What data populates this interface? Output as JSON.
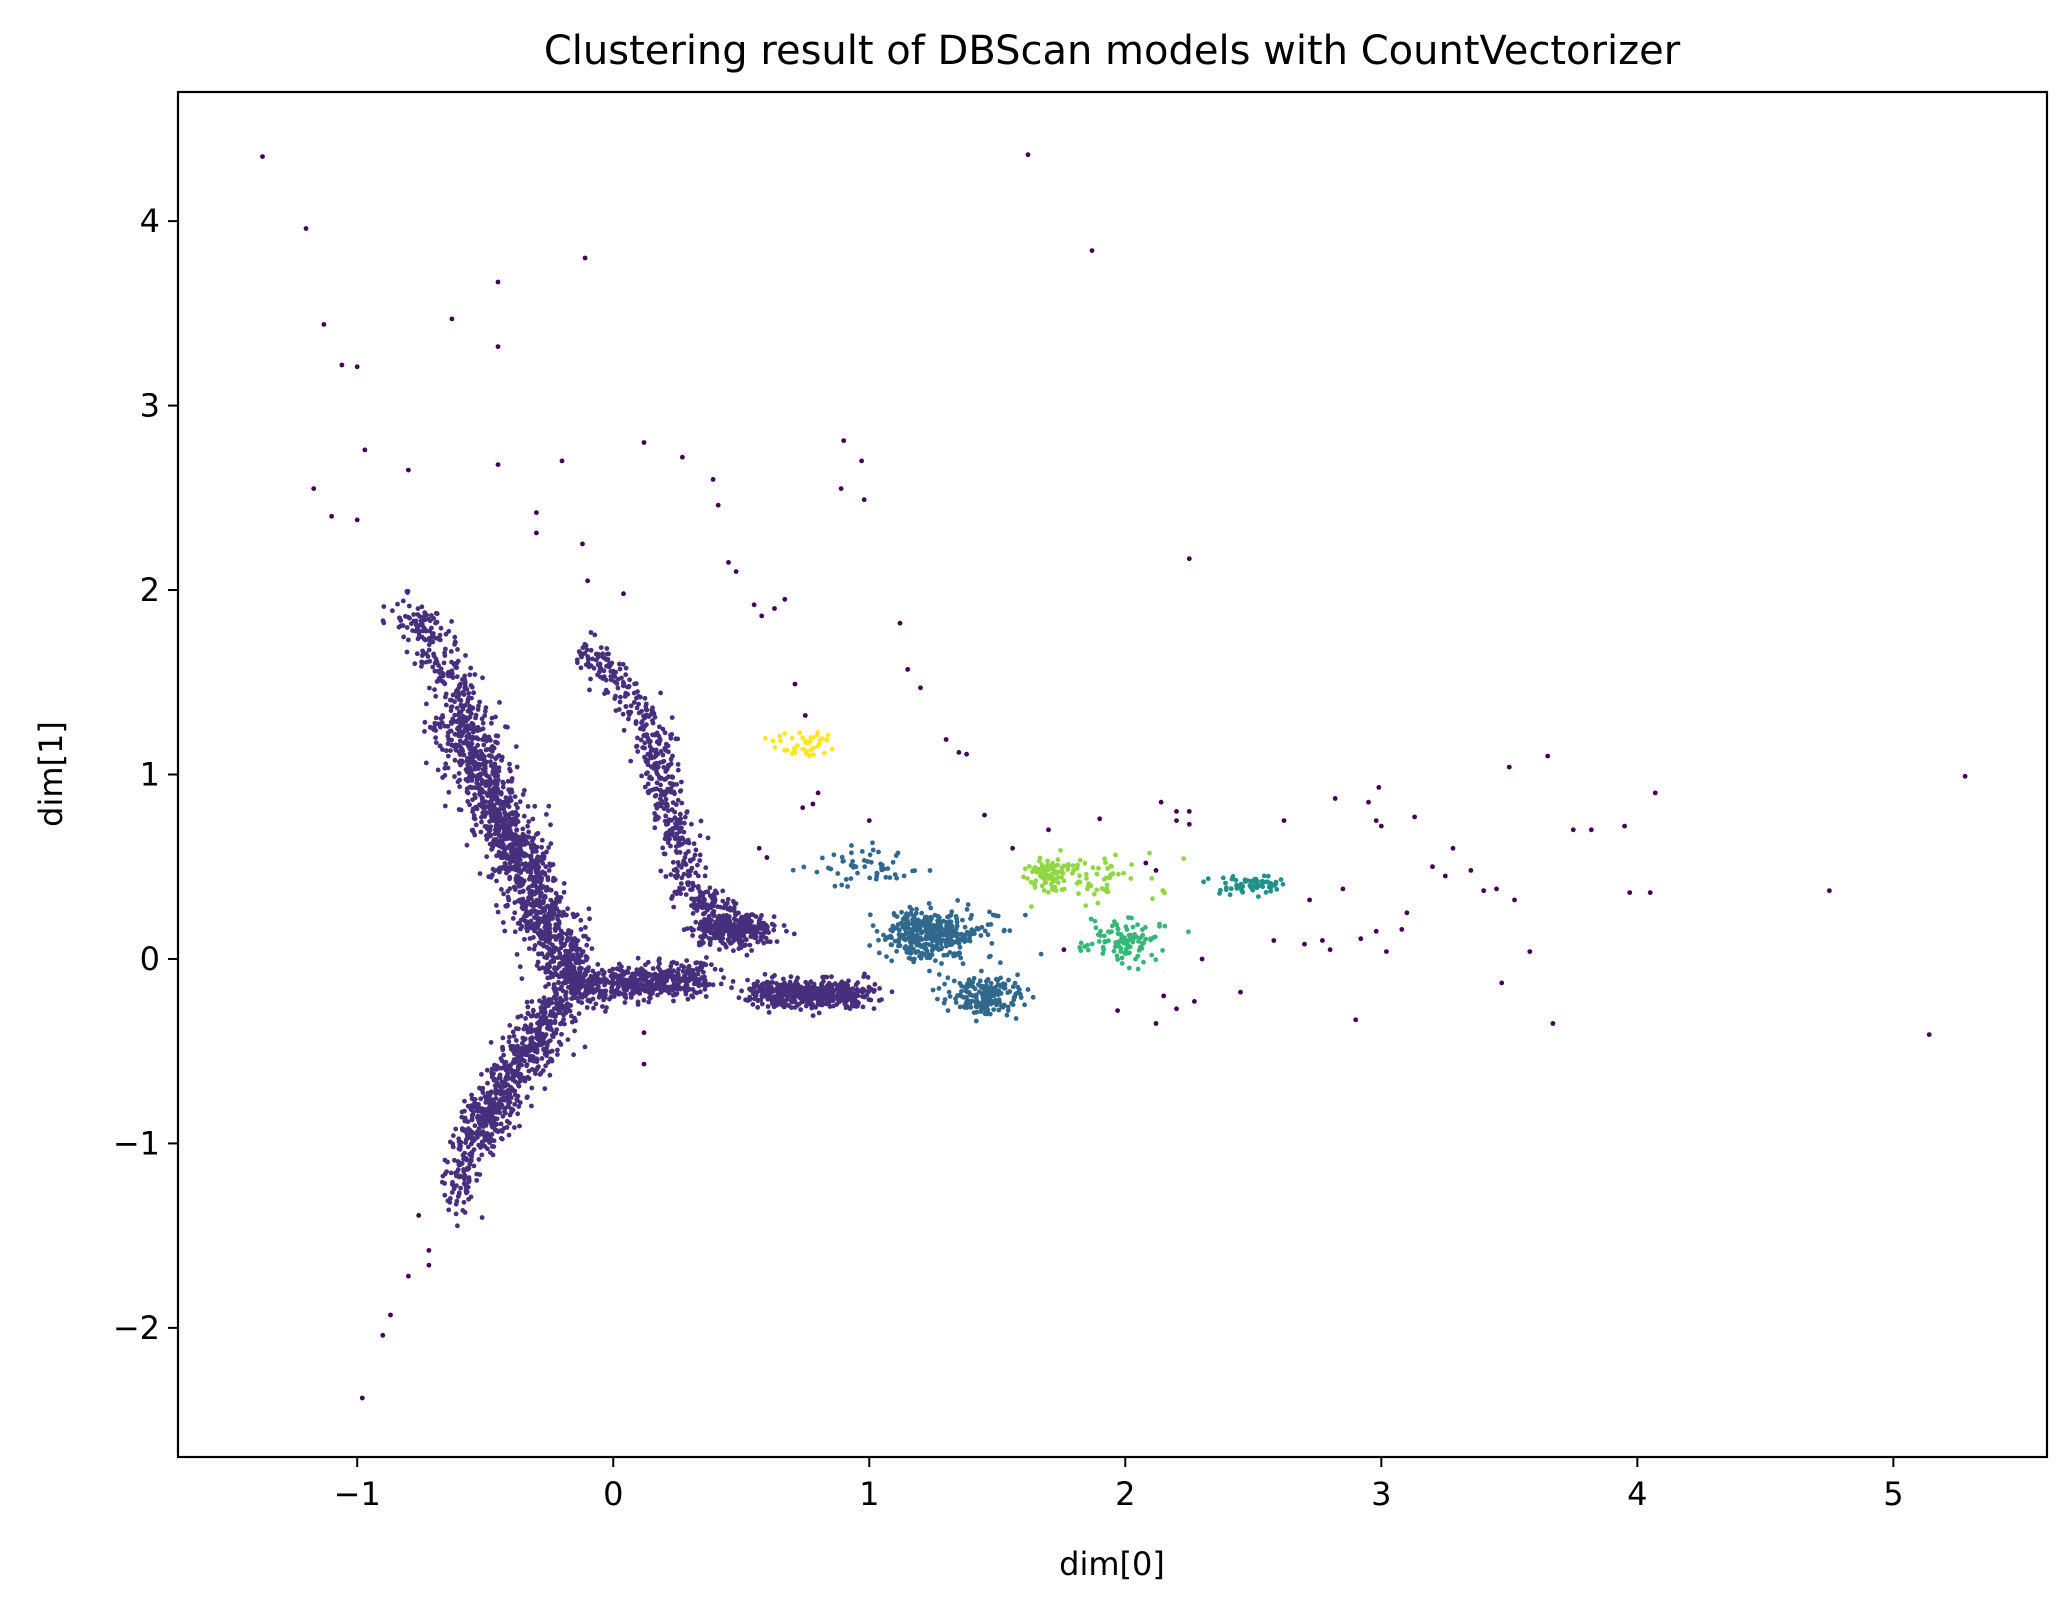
{
  "chart_data": {
    "type": "scatter",
    "title": "Clustering result of DBScan models with CountVectorizer",
    "xlabel": "dim[0]",
    "ylabel": "dim[1]",
    "xlim": [
      -1.7,
      5.6
    ],
    "ylim": [
      -2.7,
      4.7
    ],
    "x_ticks": [
      -1,
      0,
      1,
      2,
      3,
      4,
      5
    ],
    "x_tick_labels": [
      "−1",
      "0",
      "1",
      "2",
      "3",
      "4",
      "5"
    ],
    "y_ticks": [
      -2,
      -1,
      0,
      1,
      2,
      3,
      4
    ],
    "y_tick_labels": [
      "−2",
      "−1",
      "0",
      "1",
      "2",
      "3",
      "4"
    ],
    "grid": false,
    "legend": "none",
    "colormap": "viridis",
    "cluster_colors": {
      "noise": "#440154",
      "0": "#472f7d",
      "1": "#31688e",
      "2": "#21918c",
      "3": "#35b779",
      "4": "#90d743",
      "5": "#fde725"
    },
    "clusters": [
      {
        "label": "noise",
        "color": "#440154",
        "points": [
          [
            -1.37,
            4.35
          ],
          [
            -1.2,
            3.96
          ],
          [
            -1.13,
            3.44
          ],
          [
            -1.06,
            3.22
          ],
          [
            -1.0,
            3.21
          ],
          [
            -0.63,
            3.47
          ],
          [
            -0.45,
            3.67
          ],
          [
            -0.45,
            3.32
          ],
          [
            -0.11,
            3.8
          ],
          [
            0.12,
            2.8
          ],
          [
            -0.97,
            2.76
          ],
          [
            -0.8,
            2.65
          ],
          [
            -0.45,
            2.68
          ],
          [
            -0.2,
            2.7
          ],
          [
            -0.3,
            2.42
          ],
          [
            -0.3,
            2.31
          ],
          [
            0.27,
            2.72
          ],
          [
            0.39,
            2.6
          ],
          [
            0.41,
            2.46
          ],
          [
            -1.17,
            2.55
          ],
          [
            -1.1,
            2.4
          ],
          [
            -1.0,
            2.38
          ],
          [
            -0.12,
            2.25
          ],
          [
            -0.1,
            2.05
          ],
          [
            0.04,
            1.98
          ],
          [
            0.45,
            2.15
          ],
          [
            0.48,
            2.1
          ],
          [
            0.55,
            1.92
          ],
          [
            0.58,
            1.86
          ],
          [
            0.63,
            1.9
          ],
          [
            0.67,
            1.95
          ],
          [
            0.71,
            1.49
          ],
          [
            0.75,
            1.32
          ],
          [
            0.74,
            0.82
          ],
          [
            0.78,
            0.84
          ],
          [
            0.8,
            0.9
          ],
          [
            0.9,
            2.81
          ],
          [
            0.97,
            2.7
          ],
          [
            0.98,
            2.49
          ],
          [
            0.89,
            2.55
          ],
          [
            1.12,
            1.82
          ],
          [
            1.15,
            1.57
          ],
          [
            1.2,
            1.47
          ],
          [
            1.3,
            1.19
          ],
          [
            1.35,
            1.12
          ],
          [
            1.38,
            1.11
          ],
          [
            1.62,
            4.36
          ],
          [
            1.87,
            3.84
          ],
          [
            2.25,
            2.17
          ],
          [
            1.0,
            0.75
          ],
          [
            1.45,
            0.78
          ],
          [
            1.56,
            0.6
          ],
          [
            1.7,
            0.7
          ],
          [
            1.9,
            0.76
          ],
          [
            2.14,
            0.85
          ],
          [
            2.2,
            0.8
          ],
          [
            2.25,
            0.8
          ],
          [
            2.25,
            0.73
          ],
          [
            2.2,
            0.75
          ],
          [
            2.08,
            0.52
          ],
          [
            2.12,
            0.48
          ],
          [
            2.62,
            0.75
          ],
          [
            2.82,
            0.87
          ],
          [
            2.95,
            0.85
          ],
          [
            2.99,
            0.93
          ],
          [
            2.98,
            0.75
          ],
          [
            3.0,
            0.72
          ],
          [
            3.13,
            0.77
          ],
          [
            3.2,
            0.5
          ],
          [
            3.25,
            0.45
          ],
          [
            3.28,
            0.6
          ],
          [
            3.35,
            0.48
          ],
          [
            3.4,
            0.37
          ],
          [
            3.45,
            0.38
          ],
          [
            3.5,
            1.04
          ],
          [
            3.65,
            1.1
          ],
          [
            3.75,
            0.7
          ],
          [
            3.82,
            0.7
          ],
          [
            3.95,
            0.72
          ],
          [
            4.07,
            0.9
          ],
          [
            4.05,
            0.36
          ],
          [
            3.97,
            0.36
          ],
          [
            4.75,
            0.37
          ],
          [
            5.28,
            0.99
          ],
          [
            5.14,
            -0.41
          ],
          [
            3.67,
            -0.35
          ],
          [
            3.58,
            0.04
          ],
          [
            3.47,
            -0.13
          ],
          [
            3.52,
            0.32
          ],
          [
            2.9,
            -0.33
          ],
          [
            3.02,
            0.04
          ],
          [
            2.92,
            0.11
          ],
          [
            2.8,
            0.05
          ],
          [
            2.77,
            0.1
          ],
          [
            2.7,
            0.08
          ],
          [
            2.58,
            0.1
          ],
          [
            2.45,
            -0.18
          ],
          [
            2.27,
            -0.23
          ],
          [
            2.2,
            -0.27
          ],
          [
            2.15,
            -0.2
          ],
          [
            2.12,
            -0.35
          ],
          [
            1.97,
            -0.28
          ],
          [
            1.76,
            0.05
          ],
          [
            2.3,
            0.0
          ],
          [
            0.12,
            -0.57
          ],
          [
            0.12,
            -0.4
          ],
          [
            -0.72,
            -1.58
          ],
          [
            -0.72,
            -1.66
          ],
          [
            -0.8,
            -1.72
          ],
          [
            -0.87,
            -1.93
          ],
          [
            -0.9,
            -2.04
          ],
          [
            -0.98,
            -2.38
          ],
          [
            -0.76,
            -1.39
          ],
          [
            0.57,
            0.6
          ],
          [
            0.6,
            0.55
          ],
          [
            2.98,
            0.15
          ],
          [
            2.72,
            0.32
          ],
          [
            2.85,
            0.38
          ],
          [
            3.1,
            0.25
          ],
          [
            3.08,
            0.16
          ]
        ]
      },
      {
        "label": "0",
        "color": "#472f7d",
        "segments": [
          {
            "from": [
              -0.6,
              1.3
            ],
            "to": [
              -0.15,
              -0.15
            ],
            "n": 1300,
            "spread": [
              0.06,
              0.05
            ]
          },
          {
            "from": [
              -0.78,
              1.9
            ],
            "to": [
              -0.55,
              1.3
            ],
            "n": 220,
            "spread": [
              0.05,
              0.05
            ]
          },
          {
            "from": [
              -0.15,
              -0.15
            ],
            "to": [
              0.35,
              -0.1
            ],
            "n": 500,
            "spread": [
              0.04,
              0.05
            ]
          },
          {
            "from": [
              -0.2,
              -0.2
            ],
            "to": [
              -0.55,
              -1.0
            ],
            "n": 650,
            "spread": [
              0.05,
              0.05
            ]
          },
          {
            "from": [
              -0.58,
              -1.0
            ],
            "to": [
              -0.6,
              -1.35
            ],
            "n": 90,
            "spread": [
              0.04,
              0.06
            ]
          },
          {
            "from": [
              -0.1,
              1.7
            ],
            "to": [
              0.18,
              1.2
            ],
            "n": 160,
            "spread": [
              0.04,
              0.05
            ]
          },
          {
            "from": [
              0.15,
              1.2
            ],
            "to": [
              0.3,
              0.4
            ],
            "n": 280,
            "spread": [
              0.04,
              0.05
            ]
          },
          {
            "from": [
              0.28,
              0.35
            ],
            "to": [
              0.55,
              0.15
            ],
            "n": 140,
            "spread": [
              0.05,
              0.04
            ]
          },
          {
            "from": [
              0.35,
              0.15
            ],
            "to": [
              0.6,
              0.15
            ],
            "n": 240,
            "spread": [
              0.05,
              0.04
            ]
          },
          {
            "from": [
              0.58,
              -0.18
            ],
            "to": [
              0.95,
              -0.2
            ],
            "n": 480,
            "spread": [
              0.06,
              0.04
            ]
          }
        ]
      },
      {
        "label": "1",
        "color": "#31688e",
        "blobs": [
          {
            "center": [
              1.22,
              0.14
            ],
            "n": 320,
            "spread": [
              0.08,
              0.07
            ]
          },
          {
            "center": [
              1.45,
              -0.2
            ],
            "n": 200,
            "spread": [
              0.07,
              0.05
            ]
          },
          {
            "center": [
              1.0,
              0.5
            ],
            "n": 55,
            "spread": [
              0.1,
              0.05
            ]
          },
          {
            "center": [
              1.4,
              0.15
            ],
            "n": 60,
            "spread": [
              0.12,
              0.08
            ]
          }
        ]
      },
      {
        "label": "2",
        "color": "#21918c",
        "blobs": [
          {
            "center": [
              2.48,
              0.4
            ],
            "n": 60,
            "spread": [
              0.08,
              0.03
            ]
          }
        ]
      },
      {
        "label": "3",
        "color": "#35b779",
        "blobs": [
          {
            "center": [
              2.0,
              0.1
            ],
            "n": 110,
            "spread": [
              0.08,
              0.06
            ]
          }
        ]
      },
      {
        "label": "4",
        "color": "#90d743",
        "blobs": [
          {
            "center": [
              1.7,
              0.46
            ],
            "n": 90,
            "spread": [
              0.04,
              0.05
            ]
          },
          {
            "center": [
              1.9,
              0.44
            ],
            "n": 55,
            "spread": [
              0.1,
              0.06
            ]
          }
        ]
      },
      {
        "label": "5",
        "color": "#fde725",
        "blobs": [
          {
            "center": [
              0.74,
              1.16
            ],
            "n": 45,
            "spread": [
              0.06,
              0.04
            ]
          }
        ]
      }
    ]
  }
}
